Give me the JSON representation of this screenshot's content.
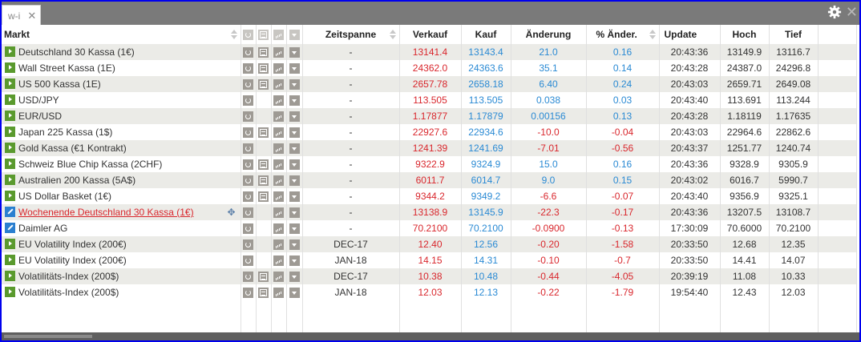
{
  "window": {
    "tab_label": "w-i",
    "tab_close": "✕",
    "close": "✕"
  },
  "columns": {
    "markt": "Markt",
    "zeitspanne": "Zeitspanne",
    "verkauf": "Verkauf",
    "kauf": "Kauf",
    "aenderung": "Änderung",
    "pct_aenderung": "% Änder.",
    "update": "Update",
    "hoch": "Hoch",
    "tief": "Tief"
  },
  "colors": {
    "sell": "#d9272d",
    "buy": "#2a8ad4",
    "positive": "#2a8ad4",
    "negative": "#d9272d",
    "play_icon": "#5a9a2e",
    "edit_icon": "#2a7fd0"
  },
  "rows": [
    {
      "name": "Deutschland 30 Kassa (1€)",
      "icon": "play",
      "doc": true,
      "zeitspanne": "-",
      "verkauf": "13141.4",
      "kauf": "13143.4",
      "aenderung": "21.0",
      "pct": "0.16",
      "update": "20:43:36",
      "hoch": "13149.9",
      "tief": "13116.7",
      "dir": "up"
    },
    {
      "name": "Wall Street Kassa (1E)",
      "icon": "play",
      "doc": true,
      "zeitspanne": "-",
      "verkauf": "24362.0",
      "kauf": "24363.6",
      "aenderung": "35.1",
      "pct": "0.14",
      "update": "20:43:28",
      "hoch": "24387.0",
      "tief": "24296.8",
      "dir": "up"
    },
    {
      "name": "US 500 Kassa (1E)",
      "icon": "play",
      "doc": true,
      "zeitspanne": "-",
      "verkauf": "2657.78",
      "kauf": "2658.18",
      "aenderung": "6.40",
      "pct": "0.24",
      "update": "20:43:03",
      "hoch": "2659.71",
      "tief": "2649.08",
      "dir": "up"
    },
    {
      "name": "USD/JPY",
      "icon": "play",
      "doc": false,
      "zeitspanne": "-",
      "verkauf": "113.505",
      "kauf": "113.505",
      "aenderung": "0.038",
      "pct": "0.03",
      "update": "20:43:40",
      "hoch": "113.691",
      "tief": "113.244",
      "dir": "up"
    },
    {
      "name": "EUR/USD",
      "icon": "play",
      "doc": false,
      "zeitspanne": "-",
      "verkauf": "1.17877",
      "kauf": "1.17879",
      "aenderung": "0.00156",
      "pct": "0.13",
      "update": "20:43:28",
      "hoch": "1.18119",
      "tief": "1.17635",
      "dir": "up"
    },
    {
      "name": "Japan 225 Kassa (1$)",
      "icon": "play",
      "doc": true,
      "zeitspanne": "-",
      "verkauf": "22927.6",
      "kauf": "22934.6",
      "aenderung": "-10.0",
      "pct": "-0.04",
      "update": "20:43:03",
      "hoch": "22964.6",
      "tief": "22862.6",
      "dir": "down"
    },
    {
      "name": "Gold Kassa (€1 Kontrakt)",
      "icon": "play",
      "doc": false,
      "zeitspanne": "-",
      "verkauf": "1241.39",
      "kauf": "1241.69",
      "aenderung": "-7.01",
      "pct": "-0.56",
      "update": "20:43:37",
      "hoch": "1251.77",
      "tief": "1240.74",
      "dir": "down"
    },
    {
      "name": "Schweiz Blue Chip Kassa (2CHF)",
      "icon": "play",
      "doc": true,
      "zeitspanne": "-",
      "verkauf": "9322.9",
      "kauf": "9324.9",
      "aenderung": "15.0",
      "pct": "0.16",
      "update": "20:43:36",
      "hoch": "9328.9",
      "tief": "9305.9",
      "dir": "up"
    },
    {
      "name": "Australien 200 Kassa (5A$)",
      "icon": "play",
      "doc": true,
      "zeitspanne": "-",
      "verkauf": "6011.7",
      "kauf": "6014.7",
      "aenderung": "9.0",
      "pct": "0.15",
      "update": "20:43:02",
      "hoch": "6016.7",
      "tief": "5990.7",
      "dir": "up"
    },
    {
      "name": "US Dollar Basket (1€)",
      "icon": "play",
      "doc": true,
      "zeitspanne": "-",
      "verkauf": "9344.2",
      "kauf": "9349.2",
      "aenderung": "-6.6",
      "pct": "-0.07",
      "update": "20:43:40",
      "hoch": "9356.9",
      "tief": "9325.1",
      "dir": "down"
    },
    {
      "name": "Wochenende Deutschland 30 Kassa (1€)",
      "icon": "edit",
      "doc": false,
      "link": true,
      "zeitspanne": "-",
      "verkauf": "13138.9",
      "kauf": "13145.9",
      "aenderung": "-22.3",
      "pct": "-0.17",
      "update": "20:43:36",
      "hoch": "13207.5",
      "tief": "13108.7",
      "dir": "down"
    },
    {
      "name": "Daimler AG",
      "icon": "edit",
      "doc": false,
      "zeitspanne": "-",
      "verkauf": "70.2100",
      "kauf": "70.2100",
      "aenderung": "-0.0900",
      "pct": "-0.13",
      "update": "17:30:09",
      "hoch": "70.6000",
      "tief": "70.2100",
      "dir": "down"
    },
    {
      "name": "EU Volatility Index (200€)",
      "icon": "play",
      "doc": false,
      "zeitspanne": "DEC-17",
      "verkauf": "12.40",
      "kauf": "12.56",
      "aenderung": "-0.20",
      "pct": "-1.58",
      "update": "20:33:50",
      "hoch": "12.68",
      "tief": "12.35",
      "dir": "down"
    },
    {
      "name": "EU Volatility Index (200€)",
      "icon": "play",
      "doc": false,
      "zeitspanne": "JAN-18",
      "verkauf": "14.15",
      "kauf": "14.31",
      "aenderung": "-0.10",
      "pct": "-0.7",
      "update": "20:33:50",
      "hoch": "14.41",
      "tief": "14.07",
      "dir": "down"
    },
    {
      "name": "Volatilitäts-Index (200$)",
      "icon": "play",
      "doc": true,
      "zeitspanne": "DEC-17",
      "verkauf": "10.38",
      "kauf": "10.48",
      "aenderung": "-0.44",
      "pct": "-4.05",
      "update": "20:39:19",
      "hoch": "11.08",
      "tief": "10.33",
      "dir": "down"
    },
    {
      "name": "Volatilitäts-Index (200$)",
      "icon": "play",
      "doc": true,
      "zeitspanne": "JAN-18",
      "verkauf": "12.03",
      "kauf": "12.13",
      "aenderung": "-0.22",
      "pct": "-1.79",
      "update": "19:54:40",
      "hoch": "12.43",
      "tief": "12.03",
      "dir": "down"
    }
  ]
}
